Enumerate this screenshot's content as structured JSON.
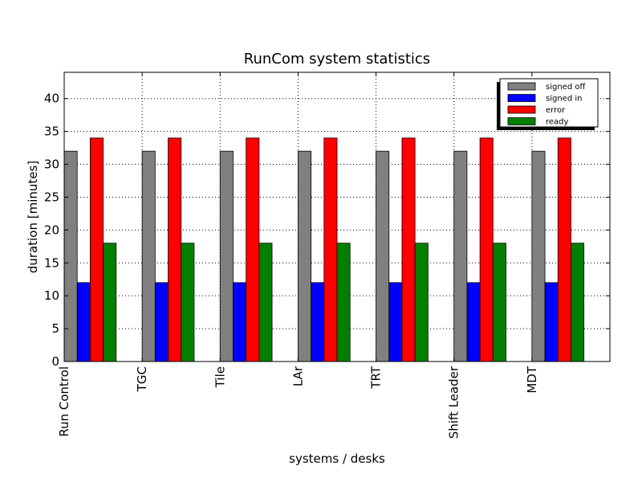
{
  "chart_data": {
    "type": "bar",
    "title": "RunCom system statistics",
    "xlabel": "systems / desks",
    "ylabel": "duration [minutes]",
    "categories": [
      "Run Control",
      "TGC",
      "Tile",
      "LAr",
      "TRT",
      "Shift Leader",
      "MDT"
    ],
    "series": [
      {
        "name": "signed off",
        "color": "#808080",
        "values": [
          32,
          32,
          32,
          32,
          32,
          32,
          32
        ]
      },
      {
        "name": "signed in",
        "color": "#0000ff",
        "values": [
          12,
          12,
          12,
          12,
          12,
          12,
          12
        ]
      },
      {
        "name": "error",
        "color": "#ff0000",
        "values": [
          34,
          34,
          34,
          34,
          34,
          34,
          34
        ]
      },
      {
        "name": "ready",
        "color": "#008000",
        "values": [
          18,
          18,
          18,
          18,
          18,
          18,
          18
        ]
      }
    ],
    "ylim": [
      0,
      44
    ],
    "yticks": [
      0,
      5,
      10,
      15,
      20,
      25,
      30,
      35,
      40
    ],
    "grid": true,
    "legend_position": "top-right"
  }
}
